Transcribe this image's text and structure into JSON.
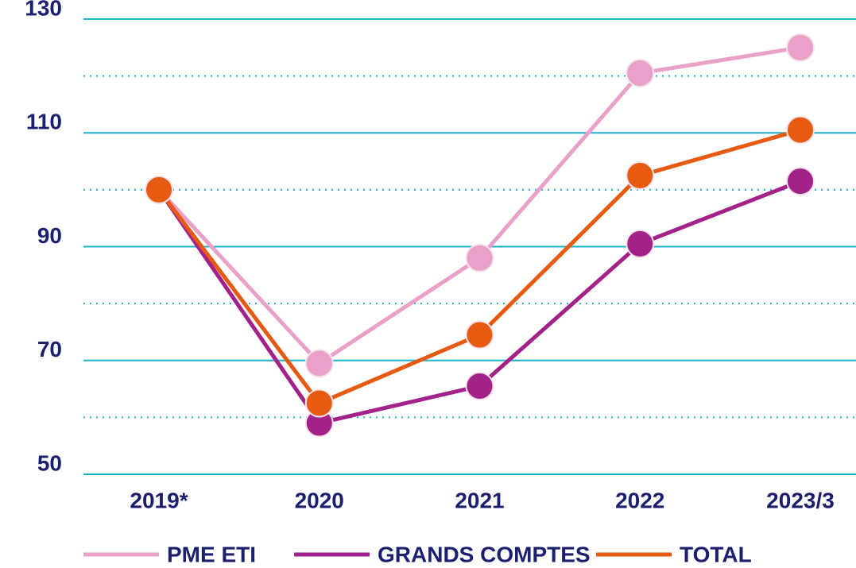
{
  "chart_data": {
    "type": "line",
    "categories": [
      "2019*",
      "2020",
      "2021",
      "2022",
      "2023/3"
    ],
    "series": [
      {
        "name": "PME ETI",
        "color": "#e9a1c9",
        "values": [
          100,
          69.5,
          88,
          120.5,
          125
        ]
      },
      {
        "name": "GRANDS COMPTES",
        "color": "#a3228a",
        "values": [
          100,
          59,
          65.5,
          90.5,
          101.5
        ]
      },
      {
        "name": "TOTAL",
        "color": "#e65a12",
        "values": [
          100,
          62.5,
          74.5,
          102.5,
          110.5
        ]
      }
    ],
    "ylim": [
      50,
      130
    ],
    "yticks": [
      50,
      70,
      90,
      110,
      130
    ],
    "minor_yticks": [
      60,
      80,
      100,
      120
    ],
    "grid": true,
    "legend": "bottom",
    "grid_color": "#19b2c9",
    "text_color": "#1c1f6e"
  }
}
